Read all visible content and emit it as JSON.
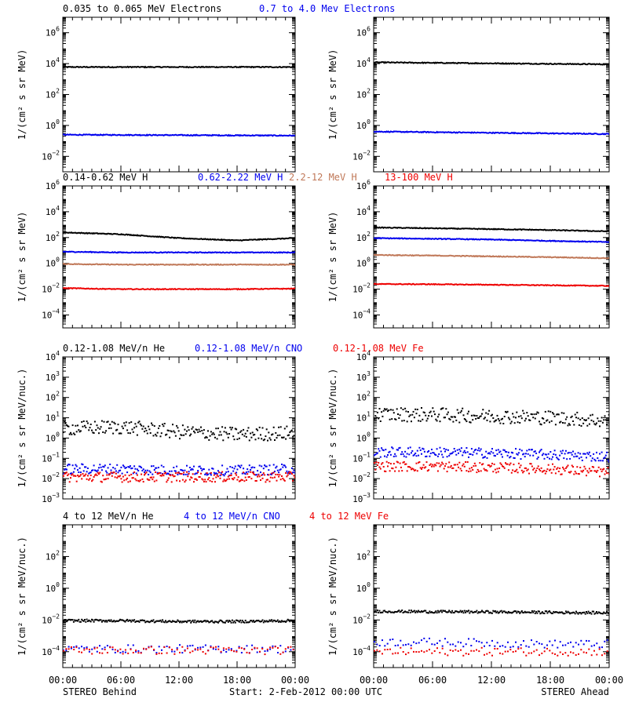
{
  "footer": {
    "left": "STEREO Behind",
    "center": "Start:  2-Feb-2012 00:00 UTC",
    "right": "STEREO Ahead"
  },
  "xticks": [
    "00:00",
    "06:00",
    "12:00",
    "18:00",
    "00:00"
  ],
  "colors": {
    "black": "#000000",
    "blue": "#0000ee",
    "tan": "#c07858",
    "red": "#ee0000"
  },
  "rows": [
    {
      "titles": [
        {
          "text": "0.035 to 0.065 MeV Electrons",
          "color": "black"
        },
        {
          "text": "0.7 to 4.0 Mev Electrons",
          "color": "blue"
        }
      ],
      "ylabel": "1/(cm² s sr MeV)",
      "ylim": [
        -3,
        7
      ],
      "yticks": [
        -2,
        0,
        2,
        4,
        6
      ]
    },
    {
      "titles": [
        {
          "text": "0.14-0.62 MeV H",
          "color": "black"
        },
        {
          "text": "0.62-2.22 MeV H",
          "color": "blue"
        },
        {
          "text": "2.2-12 MeV H",
          "color": "tan"
        },
        {
          "text": "13-100 MeV H",
          "color": "red"
        }
      ],
      "ylabel": "1/(cm² s sr MeV)",
      "ylim": [
        -5,
        6
      ],
      "yticks": [
        -4,
        -2,
        0,
        2,
        4,
        6
      ]
    },
    {
      "titles": [
        {
          "text": "0.12-1.08 MeV/n He",
          "color": "black"
        },
        {
          "text": "0.12-1.08 MeV/n CNO",
          "color": "blue"
        },
        {
          "text": "0.12-1.08 MeV Fe",
          "color": "red"
        }
      ],
      "ylabel": "1/(cm² s sr MeV/nuc.)",
      "ylim": [
        -3,
        4
      ],
      "yticks": [
        -3,
        -2,
        -1,
        0,
        1,
        2,
        3,
        4
      ]
    },
    {
      "titles": [
        {
          "text": "4 to 12 MeV/n He",
          "color": "black"
        },
        {
          "text": "4 to 12 MeV/n CNO",
          "color": "blue"
        },
        {
          "text": "4 to 12 MeV Fe",
          "color": "red"
        }
      ],
      "ylabel": "1/(cm² s sr MeV/nuc.)",
      "ylim": [
        -5,
        4
      ],
      "yticks": [
        -4,
        -2,
        0,
        2
      ]
    }
  ],
  "chart_data": [
    {
      "type": "line",
      "panel": "electrons-behind",
      "x_hours": [
        0,
        24
      ],
      "yscale": "log",
      "series": [
        {
          "name": "0.035 to 0.065 MeV Electrons",
          "color": "black",
          "values": [
            6000.0,
            6000.0
          ]
        },
        {
          "name": "0.7 to 4.0 Mev Electrons",
          "color": "blue",
          "values": [
            0.25,
            0.22
          ]
        }
      ]
    },
    {
      "type": "line",
      "panel": "electrons-ahead",
      "x_hours": [
        0,
        24
      ],
      "yscale": "log",
      "series": [
        {
          "name": "0.035 to 0.065 MeV Electrons",
          "color": "black",
          "values": [
            12000.0,
            9000.0
          ]
        },
        {
          "name": "0.7 to 4.0 Mev Electrons",
          "color": "blue",
          "values": [
            0.4,
            0.28
          ]
        }
      ]
    },
    {
      "type": "line",
      "panel": "protons-behind",
      "x_hours": [
        0,
        6,
        12,
        18,
        24
      ],
      "yscale": "log",
      "series": [
        {
          "name": "0.14-0.62 MeV H",
          "color": "black",
          "values": [
            250,
            180,
            90,
            60,
            90
          ]
        },
        {
          "name": "0.62-2.22 MeV H",
          "color": "blue",
          "values": [
            8,
            7,
            7,
            7,
            7
          ]
        },
        {
          "name": "2.2-12 MeV H",
          "color": "tan",
          "values": [
            0.9,
            0.8,
            0.8,
            0.8,
            0.8
          ]
        },
        {
          "name": "13-100 MeV H",
          "color": "red",
          "values": [
            0.012,
            0.01,
            0.01,
            0.01,
            0.011
          ]
        }
      ]
    },
    {
      "type": "line",
      "panel": "protons-ahead",
      "x_hours": [
        0,
        6,
        12,
        18,
        24
      ],
      "yscale": "log",
      "series": [
        {
          "name": "0.14-0.62 MeV H",
          "color": "black",
          "values": [
            600,
            520,
            450,
            380,
            300
          ]
        },
        {
          "name": "0.62-2.22 MeV H",
          "color": "blue",
          "values": [
            90,
            80,
            70,
            55,
            45
          ]
        },
        {
          "name": "2.2-12 MeV H",
          "color": "tan",
          "values": [
            4.5,
            4,
            3.5,
            3,
            2.5
          ]
        },
        {
          "name": "13-100 MeV H",
          "color": "red",
          "values": [
            0.025,
            0.024,
            0.022,
            0.02,
            0.018
          ]
        }
      ]
    },
    {
      "type": "scatter",
      "panel": "heavy-low-behind",
      "x_hours": [
        0,
        6,
        12,
        18,
        24
      ],
      "yscale": "log",
      "series": [
        {
          "name": "0.12-1.08 MeV/n He",
          "color": "black",
          "values": [
            3,
            3.5,
            2,
            1.5,
            1.8
          ]
        },
        {
          "name": "0.12-1.08 MeV/n CNO",
          "color": "blue",
          "values": [
            0.03,
            0.03,
            0.025,
            0.025,
            0.03
          ]
        },
        {
          "name": "0.12-1.08 MeV Fe",
          "color": "red",
          "values": [
            0.012,
            0.012,
            0.012,
            0.012,
            0.012
          ]
        }
      ]
    },
    {
      "type": "scatter",
      "panel": "heavy-low-ahead",
      "x_hours": [
        0,
        6,
        12,
        18,
        24
      ],
      "yscale": "log",
      "series": [
        {
          "name": "0.12-1.08 MeV/n He",
          "color": "black",
          "values": [
            15,
            14,
            12,
            10,
            7
          ]
        },
        {
          "name": "0.12-1.08 MeV/n CNO",
          "color": "blue",
          "values": [
            0.2,
            0.2,
            0.18,
            0.15,
            0.12
          ]
        },
        {
          "name": "0.12-1.08 MeV Fe",
          "color": "red",
          "values": [
            0.04,
            0.04,
            0.035,
            0.03,
            0.02
          ]
        }
      ]
    },
    {
      "type": "scatter",
      "panel": "heavy-high-behind",
      "x_hours": [
        0,
        6,
        12,
        18,
        24
      ],
      "yscale": "log",
      "series": [
        {
          "name": "4 to 12 MeV/n He",
          "color": "black",
          "values": [
            0.009,
            0.009,
            0.008,
            0.008,
            0.009
          ]
        },
        {
          "name": "4 to 12 MeV/n CNO",
          "color": "blue",
          "values": [
            0.00015,
            0.00015,
            0.00015,
            0.00015,
            0.00015
          ]
        },
        {
          "name": "4 to 12 MeV Fe",
          "color": "red",
          "values": [
            0.00012,
            0.00012,
            0.00012,
            0.00012,
            0.00012
          ]
        }
      ]
    },
    {
      "type": "scatter",
      "panel": "heavy-high-ahead",
      "x_hours": [
        0,
        6,
        12,
        18,
        24
      ],
      "yscale": "log",
      "series": [
        {
          "name": "4 to 12 MeV/n He",
          "color": "black",
          "values": [
            0.035,
            0.033,
            0.032,
            0.03,
            0.028
          ]
        },
        {
          "name": "4 to 12 MeV/n CNO",
          "color": "blue",
          "values": [
            0.0004,
            0.0004,
            0.00035,
            0.0003,
            0.0003
          ]
        },
        {
          "name": "4 to 12 MeV Fe",
          "color": "red",
          "values": [
            0.0001,
            0.0001,
            0.0001,
            0.0001,
            0.0001
          ]
        }
      ]
    }
  ]
}
